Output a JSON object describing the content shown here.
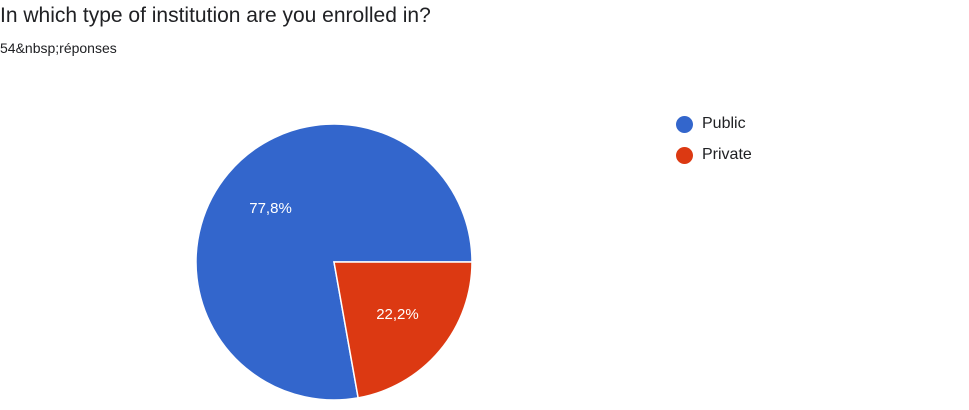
{
  "header": {
    "title": "In which type of institution are you enrolled in?",
    "responses": "54&nbsp;réponses"
  },
  "chart_data": {
    "type": "pie",
    "categories": [
      "Public",
      "Private"
    ],
    "values": [
      77.8,
      22.2
    ],
    "labels": [
      "77,8%",
      "22,2%"
    ],
    "colors": [
      "#3366cc",
      "#dc3912"
    ],
    "legend_position": "right",
    "start_angle": "3 o'clock, counter-clockwise"
  }
}
